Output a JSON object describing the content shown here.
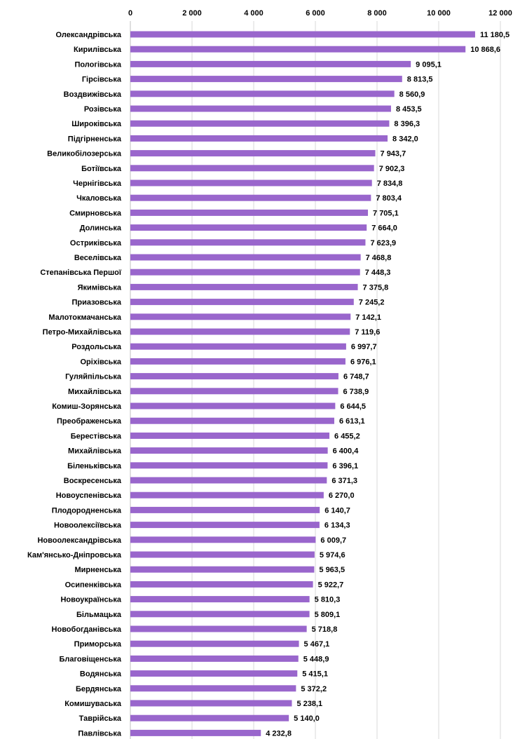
{
  "chart_data": {
    "type": "bar",
    "orientation": "horizontal",
    "title": "",
    "xlabel": "",
    "ylabel": "",
    "xlim": [
      0,
      12000
    ],
    "x_ticks": [
      0,
      2000,
      4000,
      6000,
      8000,
      10000,
      12000
    ],
    "x_tick_labels": [
      "0",
      "2 000",
      "4 000",
      "6 000",
      "8 000",
      "10 000",
      "12 000"
    ],
    "axis_position": "top",
    "grid": true,
    "legend": "none",
    "bar_color": "#9966cc",
    "categories": [
      "Олександрівська",
      "Кирилівська",
      "Пологівська",
      "Гірсівська",
      "Воздвижівська",
      "Розівська",
      "Широківська",
      "Підгірненська",
      "Великобілозерська",
      "Ботіївська",
      "Чернігівська",
      "Чкаловська",
      "Смирновська",
      "Долинська",
      "Остриківська",
      "Веселівська",
      "Степанівська Першої",
      "Якимівська",
      "Приазовська",
      "Малотокмачанська",
      "Петро-Михайлівська",
      "Роздольська",
      "Оріхівська",
      "Гуляйпільська",
      "Михайлівська",
      "Комиш-Зорянська",
      "Преображенська",
      "Берестівська",
      "Михайлівська",
      "Біленьківська",
      "Воскресенська",
      "Новоуспенівська",
      "Плодородненська",
      "Новоолексіївська",
      "Новоолександрівська",
      "Кам'янсько-Дніпровська",
      "Мирненська",
      "Осипенківська",
      "Новоукраїнська",
      "Більмацька",
      "Новобогданівська",
      "Приморська",
      "Благовіщенська",
      "Водянська",
      "Бердянська",
      "Комишуваська",
      "Таврійська",
      "Павлівська"
    ],
    "values": [
      11180.5,
      10868.6,
      9095.1,
      8813.5,
      8560.9,
      8453.5,
      8396.3,
      8342.0,
      7943.7,
      7902.3,
      7834.8,
      7803.4,
      7705.1,
      7664.0,
      7623.9,
      7468.8,
      7448.3,
      7375.8,
      7245.2,
      7142.1,
      7119.6,
      6997.7,
      6976.1,
      6748.7,
      6738.9,
      6644.5,
      6613.1,
      6455.2,
      6400.4,
      6396.1,
      6371.3,
      6270.0,
      6140.7,
      6134.3,
      6009.7,
      5974.6,
      5963.5,
      5922.7,
      5810.3,
      5809.1,
      5718.8,
      5467.1,
      5448.9,
      5415.1,
      5372.2,
      5238.1,
      5140.0,
      4232.8
    ],
    "value_labels": [
      "11 180,5",
      "10 868,6",
      "9 095,1",
      "8 813,5",
      "8 560,9",
      "8 453,5",
      "8 396,3",
      "8 342,0",
      "7 943,7",
      "7 902,3",
      "7 834,8",
      "7 803,4",
      "7 705,1",
      "7 664,0",
      "7 623,9",
      "7 468,8",
      "7 448,3",
      "7 375,8",
      "7 245,2",
      "7 142,1",
      "7 119,6",
      "6 997,7",
      "6 976,1",
      "6 748,7",
      "6 738,9",
      "6 644,5",
      "6 613,1",
      "6 455,2",
      "6 400,4",
      "6 396,1",
      "6 371,3",
      "6 270,0",
      "6 140,7",
      "6 134,3",
      "6 009,7",
      "5 974,6",
      "5 963,5",
      "5 922,7",
      "5 810,3",
      "5 809,1",
      "5 718,8",
      "5 467,1",
      "5 448,9",
      "5 415,1",
      "5 372,2",
      "5 238,1",
      "5 140,0",
      "4 232,8"
    ]
  }
}
